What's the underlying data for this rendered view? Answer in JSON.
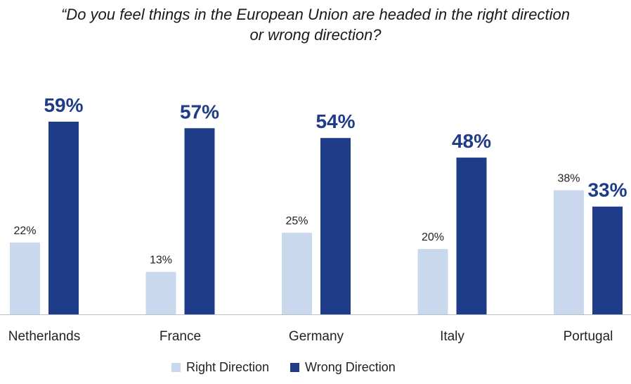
{
  "title_line1": "“Do you feel things in the European Union are headed in the right direction",
  "title_line2": "or wrong direction?",
  "colors": {
    "right": "#cad8ee",
    "wrong": "#1f3c88",
    "wrong_label": "#1f3c88",
    "right_label": "#222222"
  },
  "legend": {
    "right_label": "Right Direction",
    "wrong_label": "Wrong Direction"
  },
  "chart_data": {
    "type": "bar",
    "title": "“Do you feel things in the European Union are headed in the right direction or wrong direction?",
    "categories": [
      "Netherlands",
      "France",
      "Germany",
      "Italy",
      "Portugal"
    ],
    "series": [
      {
        "name": "Right Direction",
        "values": [
          22,
          13,
          25,
          20,
          38
        ],
        "labels": [
          "22%",
          "13%",
          "25%",
          "20%",
          "38%"
        ]
      },
      {
        "name": "Wrong Direction",
        "values": [
          59,
          57,
          54,
          48,
          33
        ],
        "labels": [
          "59%",
          "57%",
          "54%",
          "48%",
          "33%"
        ]
      }
    ],
    "ylim": [
      0,
      59
    ],
    "grid": false,
    "legend_position": "bottom"
  }
}
